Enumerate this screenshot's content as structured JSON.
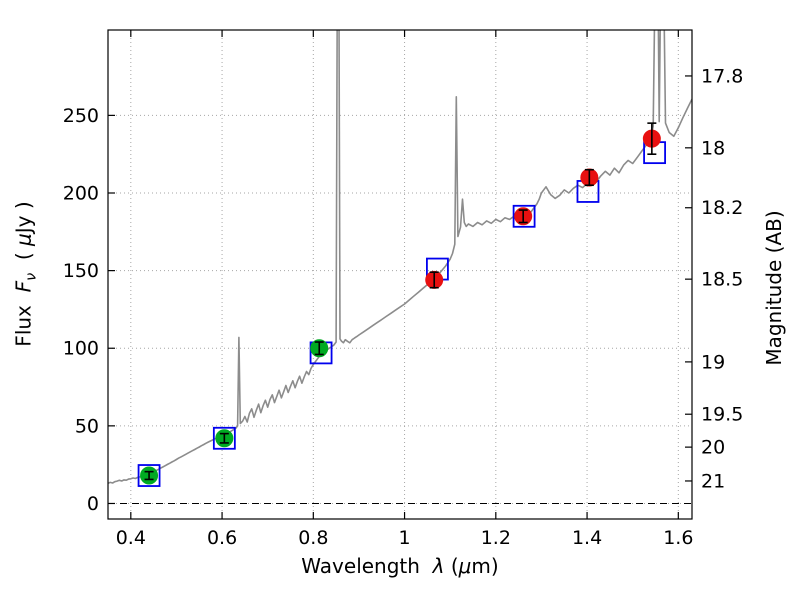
{
  "axes": {
    "xlabel": {
      "p1": "Wavelength  ",
      "lambda": "λ",
      "p2": " (",
      "mu": "μ",
      "p3": "m)"
    },
    "ylabel_left": {
      "p1": "Flux  ",
      "f": "F",
      "nu": "ν",
      "p2": "  ( ",
      "mu": "μ",
      "p3": "Jy )"
    },
    "ylabel_right": "Magnitude (AB)"
  },
  "chart_data": {
    "type": "line",
    "title": "",
    "xlabel": "Wavelength λ (μm)",
    "ylabel": "Flux Fν ( μJy )",
    "ylabel_right": "Magnitude (AB)",
    "xlim": [
      0.35,
      1.63
    ],
    "ylim": [
      -10,
      305
    ],
    "grid": "dotted",
    "legend": "none",
    "x_ticks": [
      {
        "v": 0.4,
        "label": "0.4"
      },
      {
        "v": 0.6,
        "label": "0.6"
      },
      {
        "v": 0.8,
        "label": "0.8"
      },
      {
        "v": 1.0,
        "label": "1"
      },
      {
        "v": 1.2,
        "label": "1.2"
      },
      {
        "v": 1.4,
        "label": "1.4"
      },
      {
        "v": 1.6,
        "label": "1.6"
      }
    ],
    "y_ticks": [
      {
        "v": 0,
        "label": "0"
      },
      {
        "v": 50,
        "label": "50"
      },
      {
        "v": 100,
        "label": "100"
      },
      {
        "v": 150,
        "label": "150"
      },
      {
        "v": 200,
        "label": "200"
      },
      {
        "v": 250,
        "label": "250"
      }
    ],
    "right_ticks": [
      {
        "mag": 17.8,
        "flux": 275.4,
        "label": "17.8"
      },
      {
        "mag": 18.0,
        "flux": 229.1,
        "label": "18"
      },
      {
        "mag": 18.2,
        "flux": 190.5,
        "label": "18.2"
      },
      {
        "mag": 18.5,
        "flux": 144.5,
        "label": "18.5"
      },
      {
        "mag": 19.0,
        "flux": 91.2,
        "label": "19"
      },
      {
        "mag": 19.5,
        "flux": 57.5,
        "label": "19.5"
      },
      {
        "mag": 20.0,
        "flux": 36.3,
        "label": "20"
      },
      {
        "mag": 21.0,
        "flux": 14.5,
        "label": "21"
      }
    ],
    "zero_line": {
      "value": 0,
      "style": "dashed",
      "color": "#000000"
    },
    "colors": {
      "spectrum": "#8c8c8c",
      "model_square": "#0000ee",
      "obs_green": "#00aa22",
      "obs_red": "#e81010",
      "error": "#000000",
      "grid": "#a6a6a6"
    },
    "series": [
      {
        "name": "model-spectrum",
        "type": "line",
        "color": "#8c8c8c"
      },
      {
        "name": "model-photometry",
        "type": "scatter",
        "marker": "open-square",
        "color": "#0000ee"
      },
      {
        "name": "observed-photometry",
        "type": "scatter",
        "marker": "filled-circle",
        "colors": [
          "green",
          "red"
        ]
      }
    ],
    "spectrum": [
      [
        0.35,
        13
      ],
      [
        0.355,
        13.6
      ],
      [
        0.36,
        13.2
      ],
      [
        0.365,
        14.0
      ],
      [
        0.37,
        14.4
      ],
      [
        0.375,
        14.9
      ],
      [
        0.38,
        14.5
      ],
      [
        0.385,
        15.2
      ],
      [
        0.39,
        15.0
      ],
      [
        0.395,
        15.7
      ],
      [
        0.4,
        15.9
      ],
      [
        0.405,
        16.4
      ],
      [
        0.41,
        16.1
      ],
      [
        0.415,
        16.8
      ],
      [
        0.42,
        17.1
      ],
      [
        0.425,
        17.5
      ],
      [
        0.43,
        17.9
      ],
      [
        0.435,
        18.4
      ],
      [
        0.44,
        18.9
      ],
      [
        0.445,
        19.6
      ],
      [
        0.45,
        20.3
      ],
      [
        0.455,
        21.1
      ],
      [
        0.46,
        21.9
      ],
      [
        0.465,
        22.7
      ],
      [
        0.47,
        23.5
      ],
      [
        0.475,
        24.3
      ],
      [
        0.48,
        25.1
      ],
      [
        0.485,
        25.9
      ],
      [
        0.49,
        26.7
      ],
      [
        0.495,
        27.5
      ],
      [
        0.5,
        28.3
      ],
      [
        0.505,
        29.2
      ],
      [
        0.51,
        30.0
      ],
      [
        0.515,
        30.8
      ],
      [
        0.52,
        31.6
      ],
      [
        0.525,
        32.4
      ],
      [
        0.53,
        33.2
      ],
      [
        0.535,
        34.0
      ],
      [
        0.54,
        34.8
      ],
      [
        0.545,
        35.6
      ],
      [
        0.55,
        36.4
      ],
      [
        0.555,
        37.2
      ],
      [
        0.56,
        38.0
      ],
      [
        0.565,
        38.8
      ],
      [
        0.57,
        39.6
      ],
      [
        0.575,
        40.3
      ],
      [
        0.58,
        41.0
      ],
      [
        0.585,
        41.8
      ],
      [
        0.59,
        42.4
      ],
      [
        0.595,
        43.0
      ],
      [
        0.6,
        43.6
      ],
      [
        0.605,
        44.3
      ],
      [
        0.61,
        45.0
      ],
      [
        0.615,
        45.8
      ],
      [
        0.62,
        46.6
      ],
      [
        0.625,
        47.5
      ],
      [
        0.63,
        48.5
      ],
      [
        0.634,
        50.0
      ],
      [
        0.637,
        107.0
      ],
      [
        0.64,
        51.5
      ],
      [
        0.645,
        53.0
      ],
      [
        0.65,
        56.0
      ],
      [
        0.655,
        52.5
      ],
      [
        0.66,
        58.0
      ],
      [
        0.665,
        61.0
      ],
      [
        0.67,
        55.5
      ],
      [
        0.675,
        60.0
      ],
      [
        0.68,
        64.0
      ],
      [
        0.685,
        58.5
      ],
      [
        0.69,
        63.0
      ],
      [
        0.695,
        66.5
      ],
      [
        0.7,
        62.0
      ],
      [
        0.705,
        67.0
      ],
      [
        0.71,
        70.0
      ],
      [
        0.715,
        65.0
      ],
      [
        0.72,
        69.0
      ],
      [
        0.725,
        73.0
      ],
      [
        0.73,
        68.0
      ],
      [
        0.735,
        72.0
      ],
      [
        0.74,
        76.0
      ],
      [
        0.745,
        71.5
      ],
      [
        0.75,
        75.5
      ],
      [
        0.755,
        79.0
      ],
      [
        0.76,
        74.5
      ],
      [
        0.765,
        78.5
      ],
      [
        0.77,
        82.0
      ],
      [
        0.775,
        77.5
      ],
      [
        0.78,
        81.5
      ],
      [
        0.785,
        85.0
      ],
      [
        0.79,
        83.0
      ],
      [
        0.795,
        87.0
      ],
      [
        0.8,
        89.5
      ],
      [
        0.805,
        91.5
      ],
      [
        0.81,
        93.5
      ],
      [
        0.815,
        95.5
      ],
      [
        0.82,
        97.0
      ],
      [
        0.825,
        98.0
      ],
      [
        0.83,
        99.0
      ],
      [
        0.835,
        100.0
      ],
      [
        0.84,
        101.0
      ],
      [
        0.845,
        102.0
      ],
      [
        0.85,
        104.0
      ],
      [
        0.8525,
        335
      ],
      [
        0.856,
        335
      ],
      [
        0.8585,
        106.0
      ],
      [
        0.862,
        104.5
      ],
      [
        0.866,
        103.5
      ],
      [
        0.87,
        105.5
      ],
      [
        0.875,
        104.5
      ],
      [
        0.88,
        103.5
      ],
      [
        0.885,
        105.5
      ],
      [
        0.89,
        106.5
      ],
      [
        0.895,
        107.5
      ],
      [
        0.9,
        108.5
      ],
      [
        0.91,
        110.5
      ],
      [
        0.92,
        112.5
      ],
      [
        0.93,
        114.5
      ],
      [
        0.94,
        116.5
      ],
      [
        0.95,
        118.5
      ],
      [
        0.96,
        120.5
      ],
      [
        0.97,
        122.5
      ],
      [
        0.98,
        124.5
      ],
      [
        0.99,
        126.5
      ],
      [
        1.0,
        128.5
      ],
      [
        1.01,
        131.0
      ],
      [
        1.02,
        133.5
      ],
      [
        1.03,
        136.0
      ],
      [
        1.04,
        138.5
      ],
      [
        1.05,
        141.0
      ],
      [
        1.06,
        143.5
      ],
      [
        1.07,
        146.5
      ],
      [
        1.08,
        149.5
      ],
      [
        1.09,
        153.0
      ],
      [
        1.1,
        157.5
      ],
      [
        1.105,
        161.0
      ],
      [
        1.11,
        167.0
      ],
      [
        1.1135,
        262.0
      ],
      [
        1.117,
        172.0
      ],
      [
        1.1225,
        178.0
      ],
      [
        1.127,
        196.0
      ],
      [
        1.131,
        181.0
      ],
      [
        1.135,
        178.5
      ],
      [
        1.14,
        180.0
      ],
      [
        1.15,
        178.5
      ],
      [
        1.16,
        181.0
      ],
      [
        1.17,
        179.5
      ],
      [
        1.18,
        182.0
      ],
      [
        1.19,
        180.5
      ],
      [
        1.2,
        183.0
      ],
      [
        1.21,
        181.5
      ],
      [
        1.22,
        184.0
      ],
      [
        1.23,
        183.0
      ],
      [
        1.24,
        185.0
      ],
      [
        1.25,
        186.5
      ],
      [
        1.26,
        188.0
      ],
      [
        1.27,
        185.0
      ],
      [
        1.28,
        189.0
      ],
      [
        1.29,
        193.0
      ],
      [
        1.295,
        196.0
      ],
      [
        1.3,
        200.0
      ],
      [
        1.31,
        204.0
      ],
      [
        1.32,
        199.0
      ],
      [
        1.33,
        196.5
      ],
      [
        1.34,
        198.5
      ],
      [
        1.35,
        202.0
      ],
      [
        1.36,
        200.0
      ],
      [
        1.37,
        203.0
      ],
      [
        1.38,
        205.0
      ],
      [
        1.39,
        203.5
      ],
      [
        1.4,
        206.0
      ],
      [
        1.41,
        209.0
      ],
      [
        1.42,
        207.0
      ],
      [
        1.43,
        211.0
      ],
      [
        1.44,
        214.0
      ],
      [
        1.45,
        211.5
      ],
      [
        1.46,
        216.0
      ],
      [
        1.47,
        213.0
      ],
      [
        1.48,
        218.0
      ],
      [
        1.49,
        221.0
      ],
      [
        1.5,
        219.0
      ],
      [
        1.51,
        223.0
      ],
      [
        1.52,
        227.0
      ],
      [
        1.53,
        231.0
      ],
      [
        1.54,
        236.0
      ],
      [
        1.545,
        243.0
      ],
      [
        1.549,
        335.0
      ],
      [
        1.5555,
        335.0
      ],
      [
        1.558,
        246.0
      ],
      [
        1.5615,
        335.0
      ],
      [
        1.568,
        335.0
      ],
      [
        1.572,
        245.0
      ],
      [
        1.58,
        239.0
      ],
      [
        1.59,
        236.5
      ],
      [
        1.6,
        242.0
      ],
      [
        1.61,
        248.5
      ],
      [
        1.62,
        254.5
      ],
      [
        1.63,
        260.5
      ]
    ],
    "model_photometry_squares": [
      {
        "x": 0.44,
        "y": 18
      },
      {
        "x": 0.605,
        "y": 42
      },
      {
        "x": 0.817,
        "y": 97
      },
      {
        "x": 1.072,
        "y": 151
      },
      {
        "x": 1.262,
        "y": 185
      },
      {
        "x": 1.402,
        "y": 201
      },
      {
        "x": 1.548,
        "y": 226
      }
    ],
    "observed_photometry": [
      {
        "x": 0.44,
        "y": 18,
        "err": 2.5,
        "group": "green"
      },
      {
        "x": 0.605,
        "y": 42,
        "err": 3,
        "group": "green"
      },
      {
        "x": 0.813,
        "y": 100,
        "err": 4,
        "group": "green"
      },
      {
        "x": 1.065,
        "y": 144,
        "err": 5,
        "group": "red"
      },
      {
        "x": 1.26,
        "y": 185,
        "err": 4,
        "group": "red"
      },
      {
        "x": 1.405,
        "y": 210,
        "err": 5,
        "group": "red"
      },
      {
        "x": 1.542,
        "y": 235,
        "err": 10,
        "group": "red"
      }
    ]
  }
}
